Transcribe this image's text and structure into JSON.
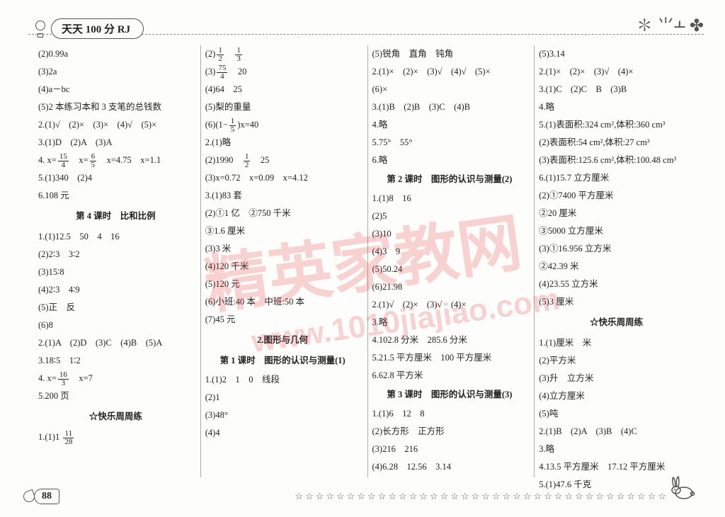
{
  "header": {
    "title": "天天 100 分 RJ"
  },
  "page_number": "88",
  "watermark_main": "精英家教网",
  "watermark_url": "www.1010jiajiao.com",
  "columns": [
    {
      "lines": [
        {
          "t": "(2)0.99a"
        },
        {
          "t": "(3)2a"
        },
        {
          "t": "(4)a－bc"
        },
        {
          "t": "(5)2 本练习本和 3 支笔的总钱数"
        },
        {
          "t": "2.(1)√　(2)×　(3)×　(4)√　(5)×"
        },
        {
          "t": "3.(1)D　(2)A　(3)A"
        },
        {
          "html": "4. x=<span class='frac'><span class='num'>15</span><span class='den'>4</span></span>　x=<span class='frac'><span class='num'>6</span><span class='den'>5</span></span>　x=4.75　x=1.1"
        },
        {
          "t": "5.(1)340　(2)4"
        },
        {
          "t": "6.108 元"
        },
        {
          "section": "第 4 课时　比和比例"
        },
        {
          "t": "1.(1)12.5　50　4　16"
        },
        {
          "t": "(2)2∶3　3∶2"
        },
        {
          "t": "(3)15∶8"
        },
        {
          "t": "(4)2∶3　4∶9"
        },
        {
          "t": "(5)正　反"
        },
        {
          "t": "(6)8"
        },
        {
          "t": "2.(1)A　(2)D　(3)C　(4)B　(5)A"
        },
        {
          "t": "3.18∶5　1∶2"
        },
        {
          "html": "4. x=<span class='frac'><span class='num'>16</span><span class='den'>3</span></span>　x=7"
        },
        {
          "t": "5.200 页"
        },
        {
          "section": "☆快乐周周练"
        },
        {
          "html": "1.(1)1 <span class='frac'><span class='num'>11</span><span class='den'>28</span></span>"
        }
      ]
    },
    {
      "lines": [
        {
          "html": "(2)<span class='frac'><span class='num'>1</span><span class='den'>2</span></span>　<span class='frac'><span class='num'>1</span><span class='den'>3</span></span>"
        },
        {
          "html": "(3)<span class='frac'><span class='num'>75</span><span class='den'>4</span></span>　20"
        },
        {
          "t": "(4)64　25"
        },
        {
          "t": "(5)梨的重量"
        },
        {
          "html": "(6)(1−<span class='frac'><span class='num'>1</span><span class='den'>5</span></span>)x=40"
        },
        {
          "t": "2.(1)略"
        },
        {
          "html": "(2)1990　<span class='frac'><span class='num'>1</span><span class='den'>2</span></span>　25"
        },
        {
          "t": "(3)x=0.72　x=0.09　x=4.12"
        },
        {
          "t": "3.(1)83 套"
        },
        {
          "t": "(2)①1 亿　②750 千米"
        },
        {
          "t": "③1.6 厘米"
        },
        {
          "t": "(3)3 米"
        },
        {
          "t": "(4)120 千米"
        },
        {
          "t": "(5)120 元"
        },
        {
          "t": "(6)小班:40 本　中班:50 本"
        },
        {
          "t": "(7)45 元"
        },
        {
          "section": "2.图形与几何"
        },
        {
          "sub": "第 1 课时　图形的认识与测量(1)"
        },
        {
          "t": "1.(1)2　1　0　线段"
        },
        {
          "t": "(2)1"
        },
        {
          "t": "(3)48°"
        },
        {
          "t": "(4)4"
        }
      ]
    },
    {
      "lines": [
        {
          "t": "(5)锐角　直角　钝角"
        },
        {
          "t": "2.(1)×　(2)×　(3)√　(4)√　(5)×"
        },
        {
          "t": "(6)×"
        },
        {
          "t": "3.(1)B　(2)B　(3)C　(4)B"
        },
        {
          "t": "4.略"
        },
        {
          "t": "5.75°　55°"
        },
        {
          "t": "6.略"
        },
        {
          "sub": "第 2 课时　图形的认识与测量(2)"
        },
        {
          "t": "1.(1)8　16"
        },
        {
          "t": "(2)5"
        },
        {
          "t": "(3)10"
        },
        {
          "t": "(4)3　9"
        },
        {
          "t": "(5)50.24"
        },
        {
          "t": "(6)21.98"
        },
        {
          "t": "2.(1)√　(2)×　(3)√　(4)×"
        },
        {
          "t": "3.略"
        },
        {
          "t": "4.102.8 分米　285.6 分米"
        },
        {
          "t": "5.21.5 平方厘米　100 平方厘米"
        },
        {
          "t": "6.62.8 平方米"
        },
        {
          "sub": "第 3 课时　图形的认识与测量(3)"
        },
        {
          "t": "1.(1)6　12　8"
        },
        {
          "t": "(2)长方形　正方形"
        },
        {
          "t": "(3)216　216"
        },
        {
          "t": "(4)6.28　12.56　3.14"
        }
      ]
    },
    {
      "lines": [
        {
          "t": "(5)3.14"
        },
        {
          "t": "2.(1)×　(2)×　(3)√　(4)×"
        },
        {
          "t": "3.(1)C　(2)C　B　(3)B"
        },
        {
          "t": "4.略"
        },
        {
          "t": "5.(1)表面积:324 cm²,体积:360 cm³"
        },
        {
          "t": "(2)表面积:54 cm²,体积:27 cm³"
        },
        {
          "t": "(3)表面积:125.6 cm²,体积:100.48 cm³"
        },
        {
          "t": "6.(1)15.7 立方厘米"
        },
        {
          "t": "(2)①7400 平方厘米"
        },
        {
          "t": "②20 厘米"
        },
        {
          "t": "③5000 立方厘米"
        },
        {
          "t": "(3)①16.956 立方米"
        },
        {
          "t": "②42.39 米"
        },
        {
          "t": "(4)23.55 立方米"
        },
        {
          "t": "(5)3 厘米"
        },
        {
          "section": "☆快乐周周练"
        },
        {
          "t": "1.(1)厘米　米"
        },
        {
          "t": "(2)平方米"
        },
        {
          "t": "(3)升　立方米"
        },
        {
          "t": "(4)立方厘米"
        },
        {
          "t": "(5)吨"
        },
        {
          "t": "2.(1)B　(2)A　(3)B　(4)C"
        },
        {
          "t": "3.略"
        },
        {
          "t": "4.13.5 平方厘米　17.12 平方厘米"
        },
        {
          "t": "5.(1)47.6 千克"
        }
      ]
    }
  ]
}
